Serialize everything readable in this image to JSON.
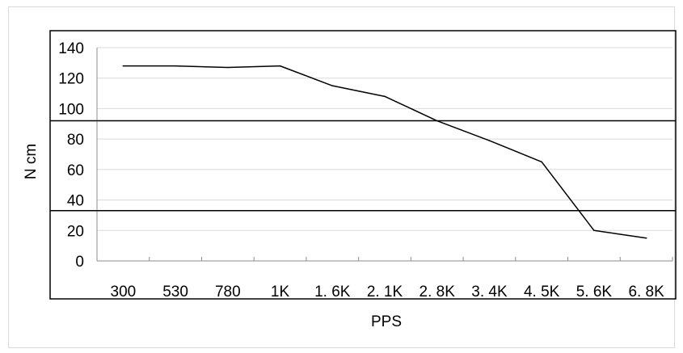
{
  "chart_data": {
    "type": "line",
    "title": "",
    "xlabel": "PPS",
    "ylabel": "N cm",
    "categories": [
      "300",
      "530",
      "780",
      "1K",
      "1. 6K",
      "2. 1K",
      "2. 8K",
      "3. 4K",
      "4. 5K",
      "5. 6K",
      "6. 8K"
    ],
    "series": [
      {
        "values": [
          128,
          128,
          127,
          128,
          115,
          108,
          92,
          79,
          65,
          20,
          15
        ]
      }
    ],
    "ylim": [
      0,
      140
    ],
    "yticks": [
      0,
      20,
      40,
      60,
      80,
      100,
      120,
      140
    ],
    "grid": true,
    "legend": "none",
    "reference_lines_y": [
      92,
      33
    ],
    "colors": {
      "line": "#000000",
      "grid": "#d9d9d9",
      "frame": "#000000"
    }
  }
}
